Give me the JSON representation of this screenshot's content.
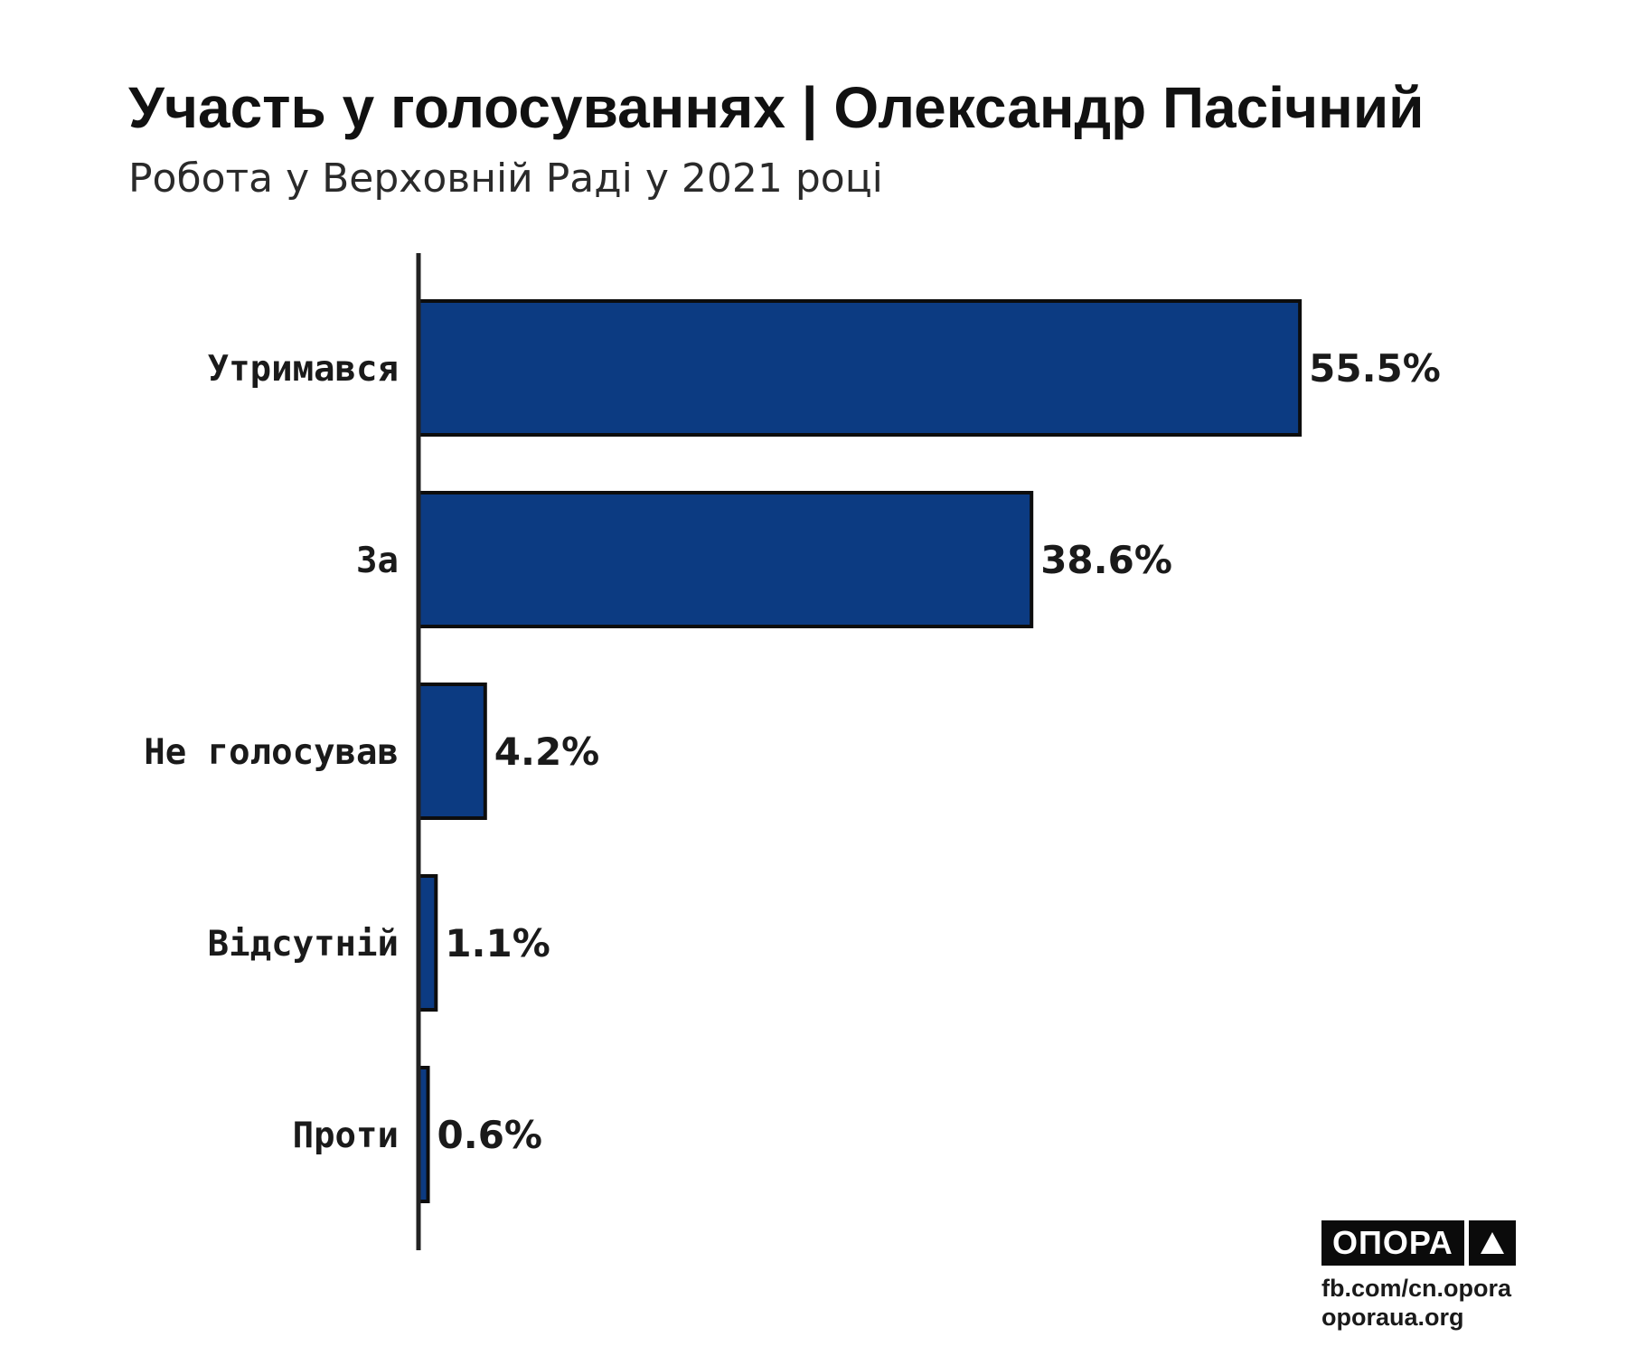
{
  "header": {
    "title": "Участь у голосуваннях | Олександр Пасічний",
    "subtitle": "Робота у Верховній Раді у 2021 році"
  },
  "chart_data": {
    "type": "bar",
    "orientation": "horizontal",
    "categories": [
      "Утримався",
      "За",
      "Не голосував",
      "Відсутній",
      "Проти"
    ],
    "values": [
      55.5,
      38.6,
      4.2,
      1.1,
      0.6
    ],
    "value_labels": [
      "55.5%",
      "38.6%",
      "4.2%",
      "1.1%",
      "0.6%"
    ],
    "unit": "%",
    "title": "Участь у голосуваннях | Олександр Пасічний",
    "subtitle": "Робота у Верховній Раді у 2021 році",
    "xlabel": "",
    "ylabel": "",
    "xlim": [
      0,
      60
    ],
    "grid": false,
    "legend": "none",
    "colors": {
      "bar_fill": "#0c3b82",
      "bar_stroke": "#0d0d0d",
      "axis": "#222222"
    }
  },
  "branding": {
    "logo_text": "ОПОРА",
    "logo_icon": "triangle-icon",
    "source_line_1": "fb.com/cn.opora",
    "source_line_2": "oporaua.org"
  }
}
